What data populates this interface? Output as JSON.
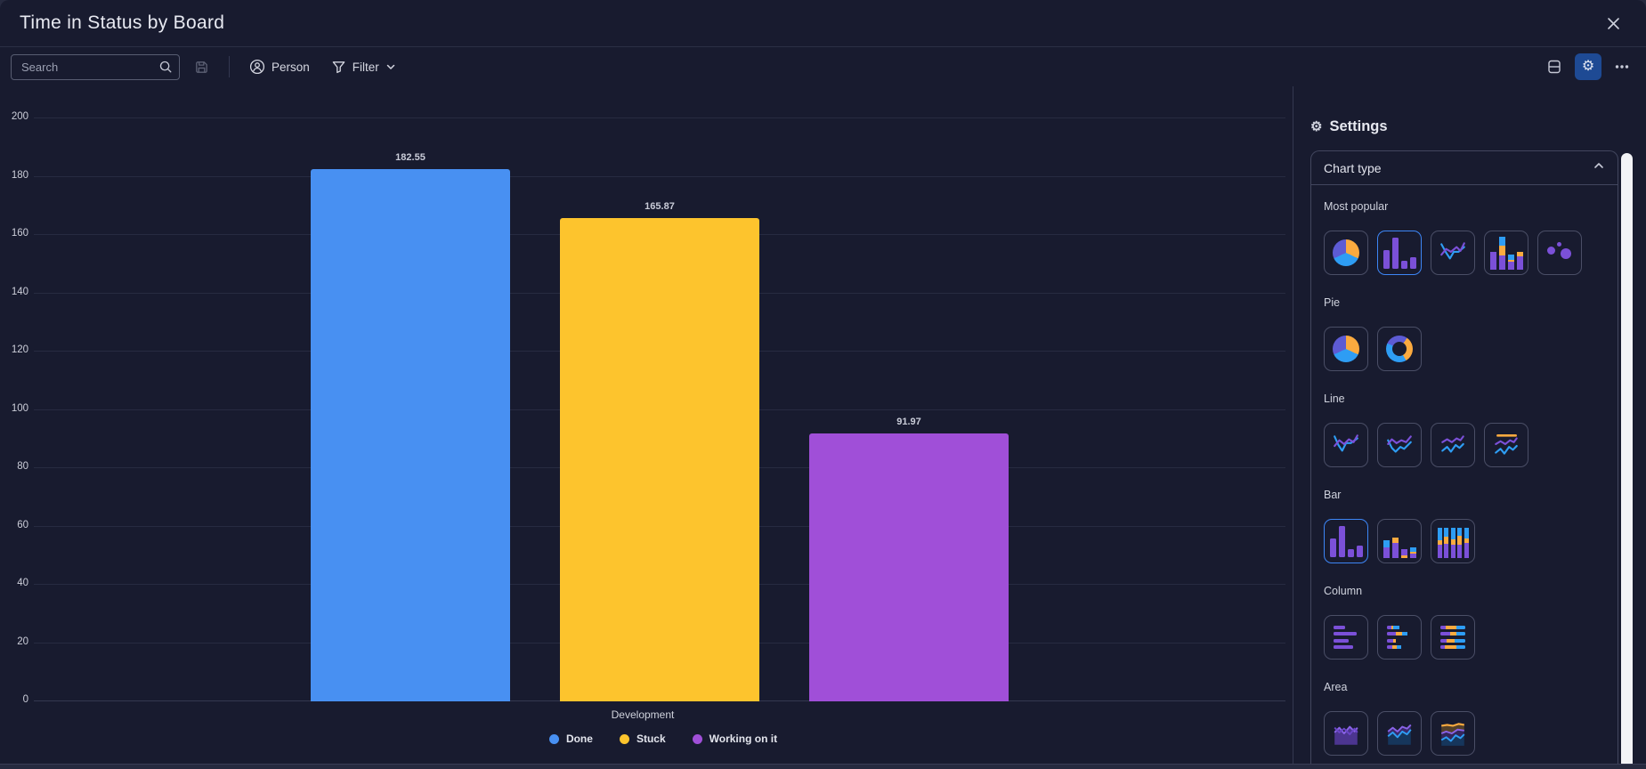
{
  "header": {
    "title": "Time in Status by Board"
  },
  "toolbar": {
    "search_placeholder": "Search",
    "person_label": "Person",
    "filter_label": "Filter"
  },
  "settings": {
    "title": "Settings",
    "card_title": "Chart type",
    "selected_tiles": [
      "most-popular-bar",
      "bar-basic"
    ],
    "sections": [
      {
        "label": "Most popular",
        "tiles": [
          "pie",
          "bar",
          "line",
          "stacked-bar",
          "scatter"
        ]
      },
      {
        "label": "Pie",
        "tiles": [
          "pie",
          "donut"
        ]
      },
      {
        "label": "Line",
        "tiles": [
          "line-1",
          "line-2",
          "line-3",
          "line-4"
        ]
      },
      {
        "label": "Bar",
        "tiles": [
          "bar-basic",
          "bar-stacked",
          "bar-100"
        ]
      },
      {
        "label": "Column",
        "tiles": [
          "column-basic",
          "column-stacked",
          "column-100"
        ]
      },
      {
        "label": "Area",
        "tiles": [
          "area-1",
          "area-2",
          "area-stacked"
        ]
      }
    ]
  },
  "chart_data": {
    "type": "bar",
    "title": "Time in Status by Board",
    "categories": [
      "Development"
    ],
    "series": [
      {
        "name": "Done",
        "color": "#4890f2",
        "values": [
          182.55
        ]
      },
      {
        "name": "Stuck",
        "color": "#fdc42d",
        "values": [
          165.87
        ]
      },
      {
        "name": "Working on it",
        "color": "#a04fd8",
        "values": [
          91.97
        ]
      }
    ],
    "ylim": [
      0,
      200
    ],
    "ytick_step": 20,
    "grid": true,
    "legend_position": "bottom"
  },
  "colors": {
    "background": "#181b2f",
    "accent_blue": "#3d86f6",
    "active_button_bg": "#1e4a94"
  }
}
